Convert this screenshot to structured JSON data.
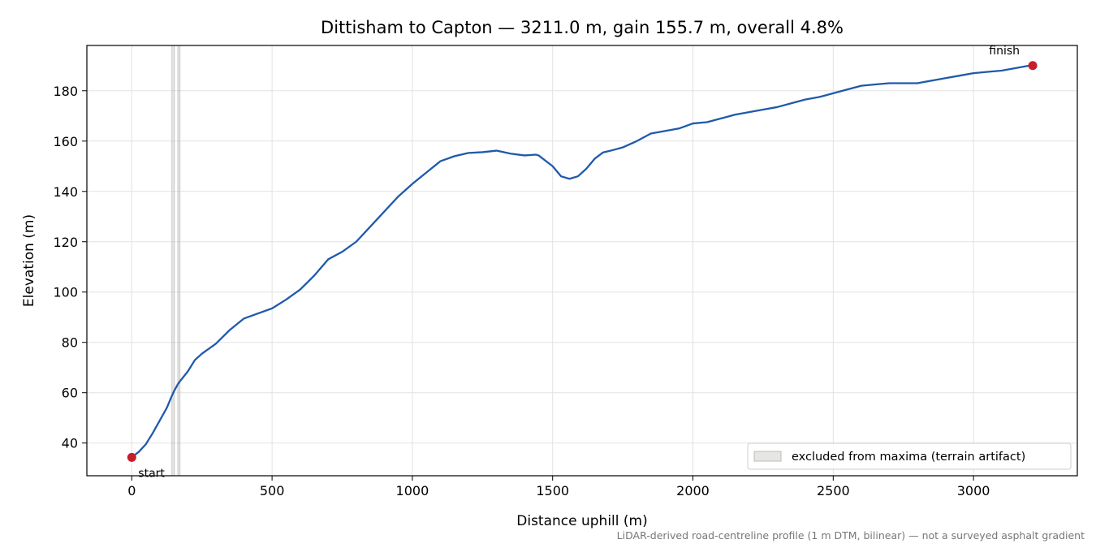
{
  "chart_data": {
    "type": "line",
    "title": "Dittisham to Capton — 3211.0 m, gain 155.7 m, overall 4.8%",
    "xlabel": "Distance uphill (m)",
    "ylabel": "Elevation (m)",
    "xlim": [
      -160,
      3370
    ],
    "ylim": [
      27,
      198
    ],
    "xticks": [
      0,
      500,
      1000,
      1500,
      2000,
      2500,
      3000
    ],
    "yticks": [
      40,
      60,
      80,
      100,
      120,
      140,
      160,
      180
    ],
    "grid": true,
    "legend_position": "bottom-right",
    "line_color": "#1f5aab",
    "marker_color": "#c81d2a",
    "excluded_color": "#b0b0ac",
    "series": [
      {
        "x": [
          0,
          25,
          50,
          75,
          100,
          125,
          140,
          150,
          165,
          175,
          200,
          225,
          250,
          300,
          350,
          400,
          450,
          500,
          550,
          600,
          650,
          700,
          750,
          800,
          850,
          900,
          950,
          1000,
          1050,
          1100,
          1150,
          1200,
          1250,
          1300,
          1350,
          1400,
          1440,
          1450,
          1500,
          1530,
          1560,
          1590,
          1620,
          1650,
          1680,
          1700,
          1750,
          1800,
          1850,
          1900,
          1950,
          2000,
          2050,
          2100,
          2150,
          2200,
          2250,
          2300,
          2350,
          2400,
          2450,
          2500,
          2550,
          2600,
          2650,
          2700,
          2750,
          2800,
          2850,
          2900,
          2950,
          3000,
          3050,
          3100,
          3150,
          3200,
          3211
        ],
        "y": [
          34.3,
          36.5,
          39.5,
          44.0,
          49.0,
          54.0,
          58.0,
          60.5,
          63.5,
          65.0,
          68.5,
          73.0,
          75.5,
          79.5,
          85.0,
          89.5,
          91.5,
          93.5,
          97.0,
          101.0,
          106.5,
          113.0,
          116.0,
          120.0,
          126.0,
          132.0,
          138.0,
          143.0,
          147.5,
          152.0,
          154.0,
          155.3,
          155.6,
          156.2,
          155.0,
          154.3,
          154.6,
          154.3,
          150.0,
          146.0,
          145.0,
          146.0,
          149.0,
          153.0,
          155.5,
          156.0,
          157.5,
          160.0,
          163.0,
          164.0,
          165.0,
          167.0,
          167.5,
          169.0,
          170.5,
          171.5,
          172.5,
          173.5,
          175.0,
          176.5,
          177.5,
          179.0,
          180.5,
          182.0,
          182.5,
          183.0,
          183.0,
          183.0,
          184.0,
          185.0,
          186.0,
          187.0,
          187.5,
          188.0,
          189.0,
          190.0,
          190.0
        ]
      }
    ],
    "excluded_regions": [
      [
        143,
        152
      ],
      [
        164,
        172
      ]
    ],
    "points": [
      {
        "label": "start",
        "x": 0,
        "y": 34.3,
        "label_position": "below-right"
      },
      {
        "label": "finish",
        "x": 3211,
        "y": 190.0,
        "label_position": "above-left"
      }
    ],
    "legend": [
      {
        "label": "excluded from maxima (terrain artifact)"
      }
    ],
    "footnote": "LiDAR-derived road-centreline profile (1 m DTM, bilinear) — not a surveyed asphalt gradient"
  }
}
